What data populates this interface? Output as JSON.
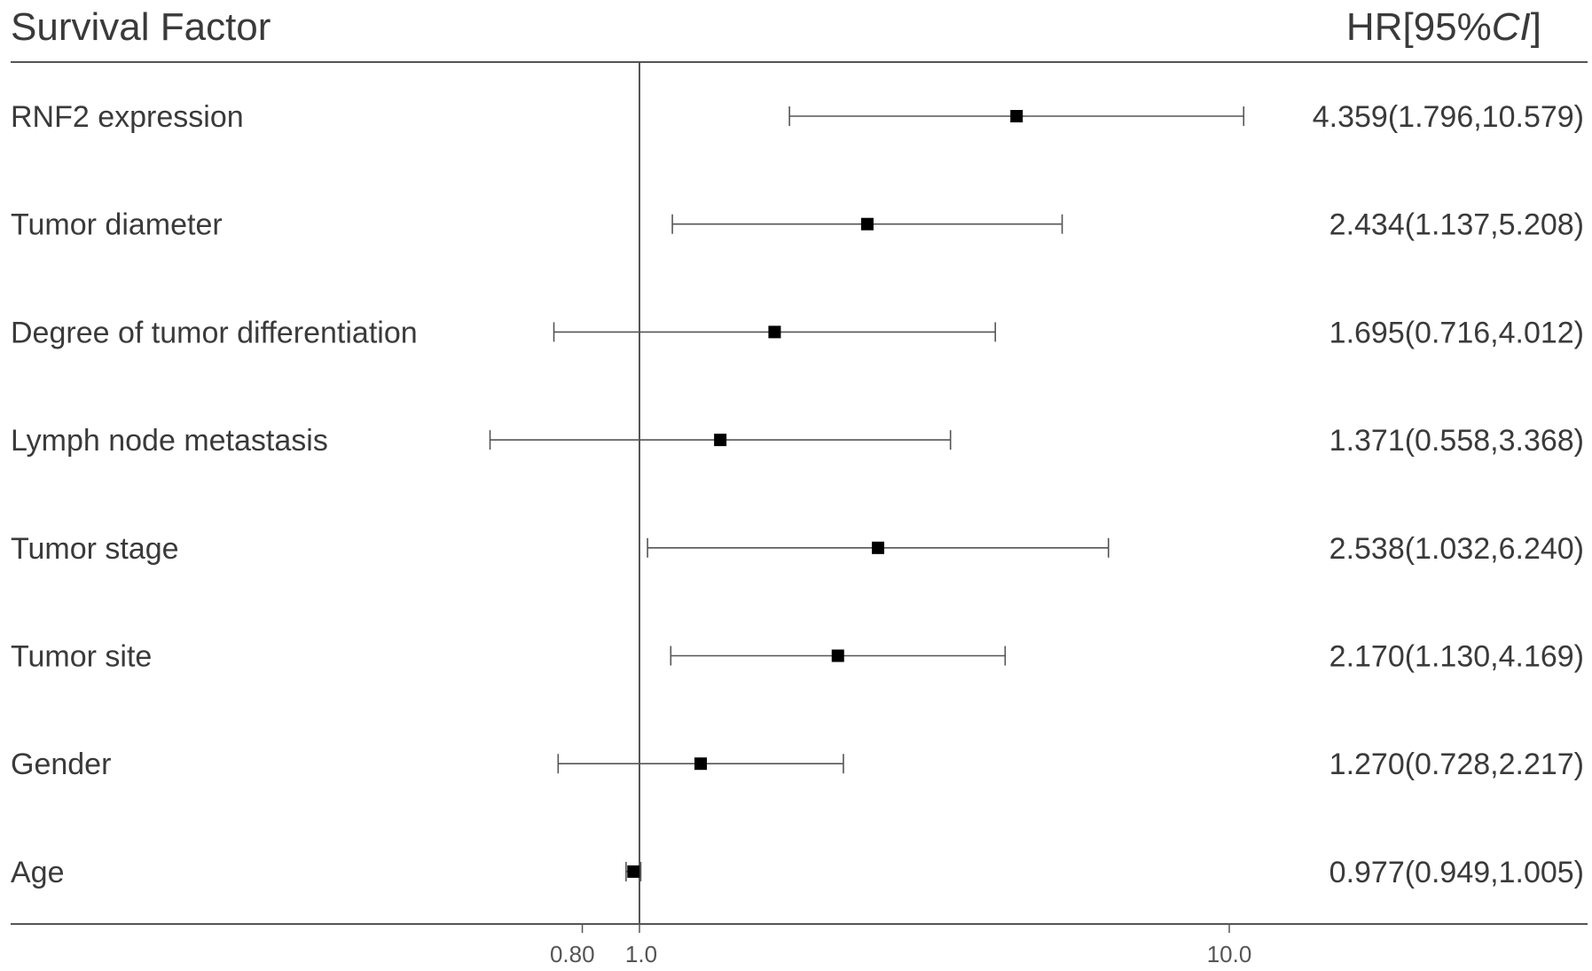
{
  "chart_data": {
    "type": "forest",
    "header": {
      "factor_label": "Survival Factor",
      "hr_label_prefix": "HR[95%",
      "hr_label_ci": "CI",
      "hr_label_suffix": "]"
    },
    "x_scale": "log",
    "xlim": [
      0.5,
      30
    ],
    "reference_line": 1.0,
    "x_ticks": [
      {
        "value": 0.8,
        "label": "0.80"
      },
      {
        "value": 1.0,
        "label": "1.0"
      },
      {
        "value": 10.0,
        "label": "10.0"
      }
    ],
    "rows": [
      {
        "factor": "RNF2 expression",
        "hr": 4.359,
        "lower": 1.796,
        "upper": 10.579,
        "label": "4.359(1.796,10.579)"
      },
      {
        "factor": "Tumor diameter",
        "hr": 2.434,
        "lower": 1.137,
        "upper": 5.208,
        "label": "2.434(1.137,5.208)"
      },
      {
        "factor": "Degree of tumor differentiation",
        "hr": 1.695,
        "lower": 0.716,
        "upper": 4.012,
        "label": "1.695(0.716,4.012)"
      },
      {
        "factor": "Lymph node metastasis",
        "hr": 1.371,
        "lower": 0.558,
        "upper": 3.368,
        "label": "1.371(0.558,3.368)"
      },
      {
        "factor": "Tumor stage",
        "hr": 2.538,
        "lower": 1.032,
        "upper": 6.24,
        "label": "2.538(1.032,6.240)"
      },
      {
        "factor": "Tumor site",
        "hr": 2.17,
        "lower": 1.13,
        "upper": 4.169,
        "label": "2.170(1.130,4.169)"
      },
      {
        "factor": "Gender",
        "hr": 1.27,
        "lower": 0.728,
        "upper": 2.217,
        "label": "1.270(0.728,2.217)"
      },
      {
        "factor": "Age",
        "hr": 0.977,
        "lower": 0.949,
        "upper": 1.005,
        "label": "0.977(0.949,1.005)"
      }
    ],
    "colors": {
      "ink": "#000000",
      "line": "#555555",
      "text": "#3a3a3a"
    }
  }
}
